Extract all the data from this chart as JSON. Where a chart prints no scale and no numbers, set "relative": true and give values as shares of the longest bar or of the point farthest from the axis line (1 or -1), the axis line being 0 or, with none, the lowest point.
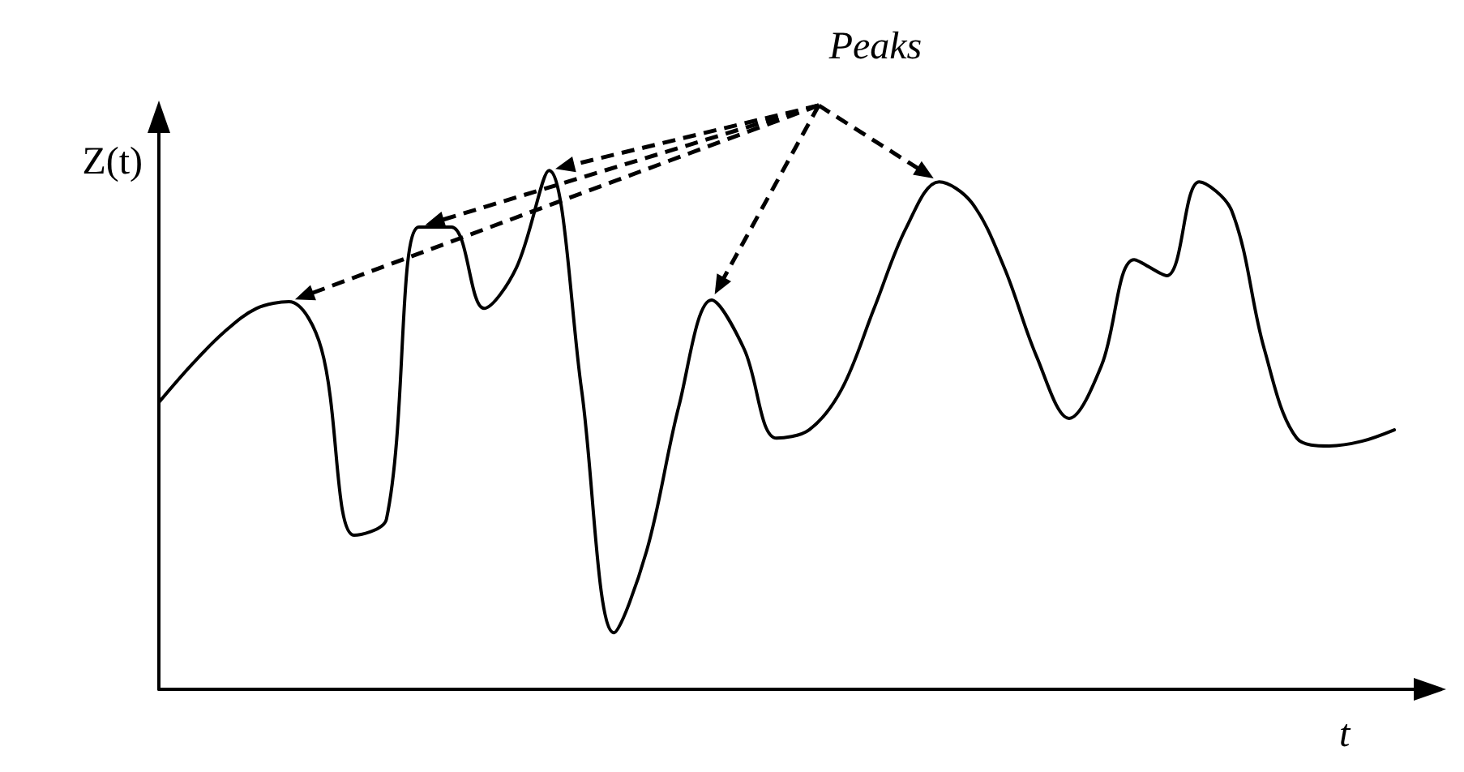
{
  "chart_data": {
    "type": "line",
    "relative": true,
    "title": "Peaks",
    "xlabel": "t",
    "ylabel": "Z(t)",
    "categories": [
      null,
      null,
      null,
      null,
      null,
      null,
      null,
      null,
      null,
      null,
      null,
      null,
      null,
      null,
      null,
      null,
      null,
      null,
      null,
      null,
      null,
      null,
      null,
      null,
      null,
      null,
      null,
      null,
      null,
      null,
      null,
      null,
      null,
      null,
      null,
      null,
      null,
      null,
      null
    ],
    "series": [
      {
        "color": "#000000",
        "values": [
          0.553,
          0.625,
          0.688,
          0.734,
          0.747,
          0.656,
          0.297,
          0.328,
          0.891,
          0.891,
          0.734,
          0.813,
          1.0,
          0.578,
          0.109,
          0.266,
          0.547,
          0.75,
          0.656,
          0.484,
          0.5,
          0.578,
          0.734,
          0.891,
          0.978,
          0.938,
          0.813,
          0.641,
          0.522,
          0.625,
          0.828,
          0.797,
          0.978,
          0.922,
          0.656,
          0.484,
          0.469,
          0.478,
          0.5
        ]
      }
    ],
    "grid": false,
    "marker": "none",
    "line_style": "solid"
  }
}
